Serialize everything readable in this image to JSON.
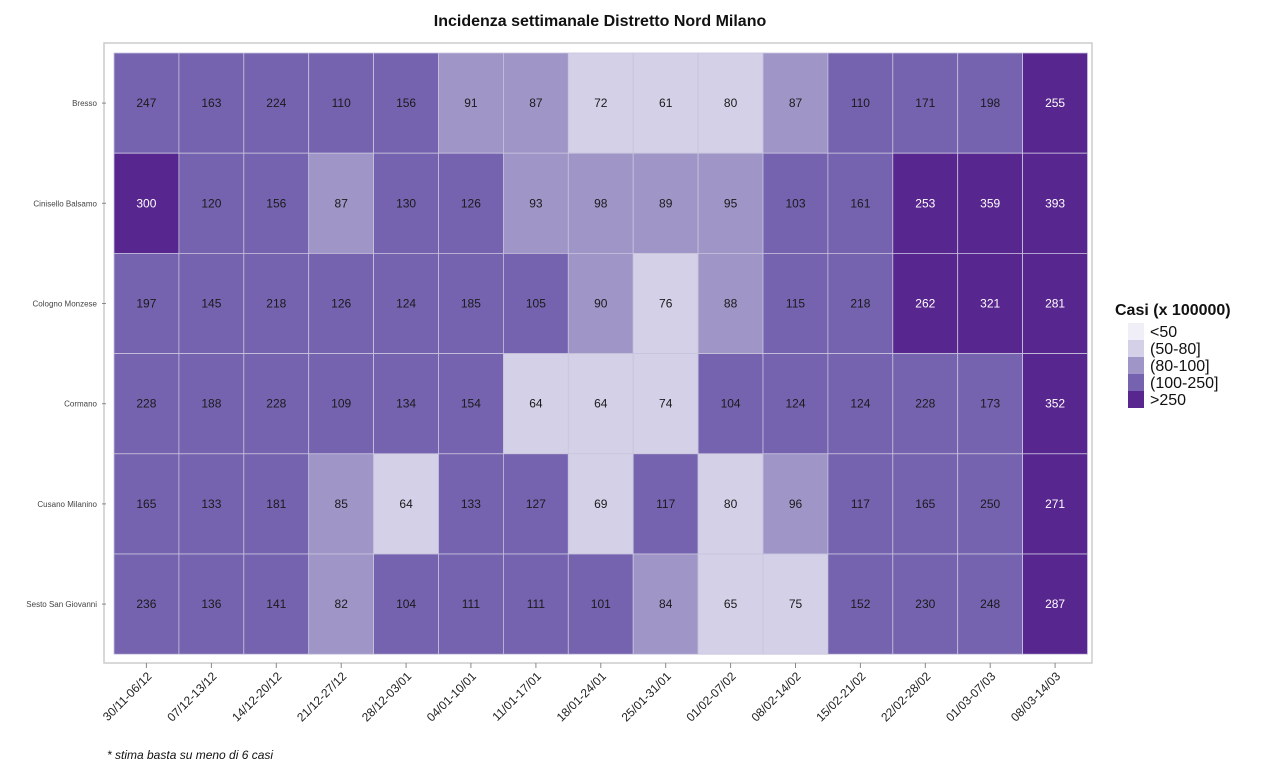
{
  "chart_data": {
    "type": "heatmap",
    "title": "Incidenza settimanale Distretto Nord Milano",
    "rows": [
      "Bresso",
      "Cinisello Balsamo",
      "Cologno Monzese",
      "Cormano",
      "Cusano Milanino",
      "Sesto San Giovanni"
    ],
    "columns": [
      "30/11-06/12",
      "07/12-13/12",
      "14/12-20/12",
      "21/12-27/12",
      "28/12-03/01",
      "04/01-10/01",
      "11/01-17/01",
      "18/01-24/01",
      "25/01-31/01",
      "01/02-07/02",
      "08/02-14/02",
      "15/02-21/02",
      "22/02-28/02",
      "01/03-07/03",
      "08/03-14/03"
    ],
    "values": [
      [
        247,
        163,
        224,
        110,
        156,
        91,
        87,
        72,
        61,
        80,
        87,
        110,
        171,
        198,
        255
      ],
      [
        300,
        120,
        156,
        87,
        130,
        126,
        93,
        98,
        89,
        95,
        103,
        161,
        253,
        359,
        393
      ],
      [
        197,
        145,
        218,
        126,
        124,
        185,
        105,
        90,
        76,
        88,
        115,
        218,
        262,
        321,
        281
      ],
      [
        228,
        188,
        228,
        109,
        134,
        154,
        64,
        64,
        74,
        104,
        124,
        124,
        228,
        173,
        352
      ],
      [
        165,
        133,
        181,
        85,
        64,
        133,
        127,
        69,
        117,
        80,
        96,
        117,
        165,
        250,
        271
      ],
      [
        236,
        136,
        141,
        82,
        104,
        111,
        111,
        101,
        84,
        65,
        75,
        152,
        230,
        248,
        287
      ]
    ],
    "legend": {
      "title": "Casi (x 100000)",
      "position": "right",
      "bins": [
        {
          "label": "<50",
          "color": "#f0eef7"
        },
        {
          "label": "(50-80]",
          "color": "#d4d0e8"
        },
        {
          "label": "(80-100]",
          "color": "#9f96c7"
        },
        {
          "label": "(100-250]",
          "color": "#7563b0"
        },
        {
          "label": ">250",
          "color": "#58268f"
        }
      ]
    },
    "footnote": "* stima basta su meno di 6 casi"
  }
}
